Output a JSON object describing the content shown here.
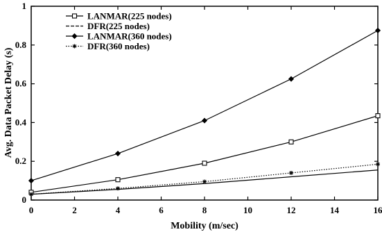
{
  "chart_data": {
    "type": "line",
    "xlabel": "Mobility (m/sec)",
    "ylabel": "Avg. Data Packet Delay (s)",
    "xlim": [
      0,
      16
    ],
    "ylim": [
      0,
      1
    ],
    "xticks": [
      "0",
      "2",
      "4",
      "6",
      "8",
      "10",
      "12",
      "14",
      "16"
    ],
    "yticks": [
      "0",
      "0.2",
      "0.4",
      "0.6",
      "0.8",
      "1"
    ],
    "grid": false,
    "legend_position": "top-left",
    "x": [
      0,
      4,
      8,
      12,
      16
    ],
    "series": [
      {
        "name": "LANMAR(225 nodes)",
        "values": [
          0.04,
          0.105,
          0.19,
          0.3,
          0.435
        ],
        "marker": "square-open",
        "line_style": "solid",
        "color": "#000000"
      },
      {
        "name": "DFR(225 nodes)",
        "values": [
          0.03,
          0.055,
          0.085,
          0.12,
          0.155
        ],
        "marker": "none",
        "line_style": "solid",
        "color": "#000000"
      },
      {
        "name": "LANMAR(360 nodes)",
        "values": [
          0.1,
          0.24,
          0.41,
          0.625,
          0.875
        ],
        "marker": "diamond-filled",
        "line_style": "solid",
        "color": "#000000"
      },
      {
        "name": "DFR(360 nodes)",
        "values": [
          0.03,
          0.06,
          0.095,
          0.14,
          0.185
        ],
        "marker": "star",
        "line_style": "dotted",
        "color": "#000000"
      }
    ]
  }
}
